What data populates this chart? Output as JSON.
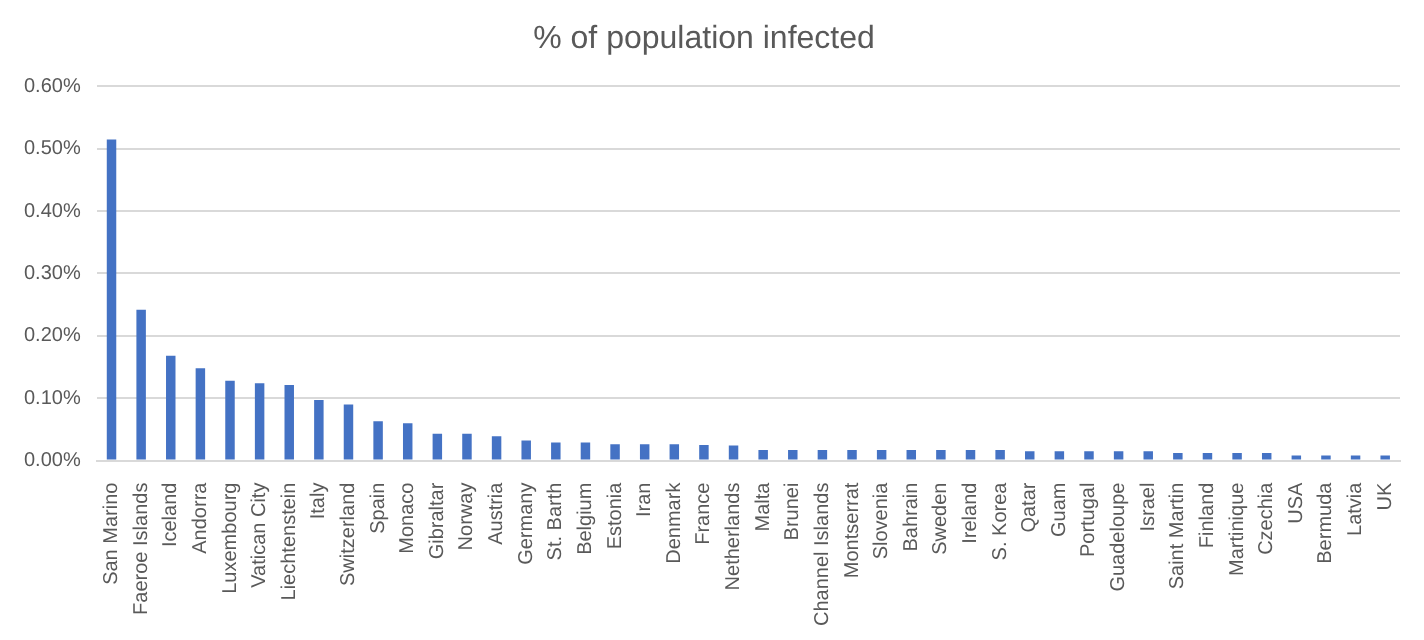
{
  "chart_data": {
    "type": "bar",
    "title": "% of population infected",
    "categories": [
      "San Marino",
      "Faeroe Islands",
      "Iceland",
      "Andorra",
      "Luxembourg",
      "Vatican City",
      "Liechtenstein",
      "Italy",
      "Switzerland",
      "Spain",
      "Monaco",
      "Gibraltar",
      "Norway",
      "Austria",
      "Germany",
      "St. Barth",
      "Belgium",
      "Estonia",
      "Iran",
      "Denmark",
      "France",
      "Netherlands",
      "Malta",
      "Brunei",
      "Channel Islands",
      "Montserrat",
      "Slovenia",
      "Bahrain",
      "Sweden",
      "Ireland",
      "S. Korea",
      "Qatar",
      "Guam",
      "Portugal",
      "Guadeloupe",
      "Israel",
      "Saint Martin",
      "Finland",
      "Martinique",
      "Czechia",
      "USA",
      "Bermuda",
      "Latvia",
      "UK"
    ],
    "values": [
      0.515,
      0.242,
      0.168,
      0.148,
      0.128,
      0.124,
      0.121,
      0.097,
      0.09,
      0.063,
      0.06,
      0.043,
      0.043,
      0.039,
      0.032,
      0.029,
      0.029,
      0.026,
      0.026,
      0.026,
      0.025,
      0.024,
      0.017,
      0.017,
      0.017,
      0.017,
      0.017,
      0.017,
      0.017,
      0.017,
      0.017,
      0.015,
      0.015,
      0.015,
      0.015,
      0.015,
      0.012,
      0.012,
      0.012,
      0.012,
      0.008,
      0.008,
      0.008,
      0.008
    ],
    "color": "#4472c4",
    "ylim": [
      0,
      0.6
    ],
    "yticks": [
      {
        "value": 0,
        "label": "0.00%"
      },
      {
        "value": 0.1,
        "label": "0.10%"
      },
      {
        "value": 0.2,
        "label": "0.20%"
      },
      {
        "value": 0.3,
        "label": "0.30%"
      },
      {
        "value": 0.4,
        "label": "0.40%"
      },
      {
        "value": 0.5,
        "label": "0.50%"
      },
      {
        "value": 0.6,
        "label": "0.60%"
      }
    ],
    "grid": "y"
  }
}
